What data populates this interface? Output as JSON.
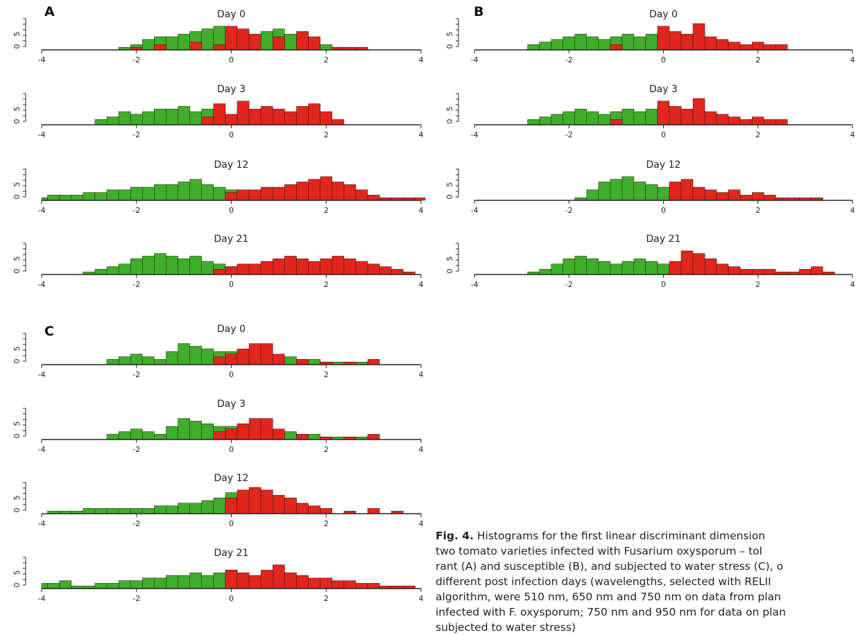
{
  "panels": [
    {
      "letter": "A",
      "days": [
        "Day 0",
        "Day 3",
        "Day 12",
        "Day 21"
      ]
    },
    {
      "letter": "B",
      "days": [
        "Day 0",
        "Day 3",
        "Day 12",
        "Day 21"
      ]
    },
    {
      "letter": "C",
      "days": [
        "Day 0",
        "Day 3",
        "Day 12",
        "Day 21"
      ]
    }
  ],
  "colors": {
    "class_1": "#3fae2a",
    "class_2": "#e0261d",
    "axis": "#222222"
  },
  "x_tick_labels": [
    "-4",
    "-2",
    "0",
    "2",
    "4"
  ],
  "y_tick_labels": [
    "0",
    "5"
  ],
  "caption": {
    "bold_prefix": "Fig. 4.",
    "lines": [
      " Histograms for the first linear discriminant dimension",
      "two tomato varieties infected with Fusarium oxysporum – tol",
      "rant (A) and susceptible (B), and subjected to water stress (C), o",
      "different post infection days (wavelengths, selected with RELII",
      "algorithm, were 510 nm, 650 nm and 750 nm on data from plan",
      "infected with F. oxysporum; 750 nm and 950 nm for data on plan",
      "subjected to water stress)"
    ]
  },
  "chart_data": [
    {
      "type": "bar",
      "panel": "A",
      "day": "Day 0",
      "xlim": [
        -4,
        4
      ],
      "series": [
        {
          "x": [
            -2.25,
            -2.0,
            -1.75,
            -1.5,
            -1.25,
            -1.0,
            -0.75,
            -0.5,
            -0.25,
            0.0,
            0.25,
            0.5,
            0.75,
            1.0,
            1.25,
            1.5,
            1.75,
            2.0,
            2.25,
            2.5,
            2.75
          ],
          "values": [
            1,
            2,
            4,
            5,
            5,
            6,
            7,
            8,
            9,
            8,
            7,
            6,
            7,
            8,
            6,
            4,
            3,
            2,
            1,
            1,
            1
          ]
        },
        {
          "x": [
            -2.0,
            -1.5,
            -0.75,
            -0.25,
            0.0,
            0.25,
            0.5,
            1.0,
            1.5,
            1.75,
            2.25,
            2.5,
            2.75
          ],
          "values": [
            1,
            2,
            3,
            2,
            9,
            8,
            6,
            5,
            7,
            5,
            1,
            1,
            1
          ]
        }
      ]
    },
    {
      "type": "bar",
      "panel": "A",
      "day": "Day 3",
      "xlim": [
        -4,
        4
      ],
      "series": [
        {
          "x": [
            -2.75,
            -2.5,
            -2.25,
            -2.0,
            -1.75,
            -1.5,
            -1.25,
            -1.0,
            -0.75,
            -0.5,
            -0.25,
            0.0,
            0.25,
            0.5,
            0.75,
            1.0,
            1.25,
            1.5,
            1.75,
            2.0
          ],
          "values": [
            2,
            3,
            5,
            4,
            5,
            6,
            6,
            7,
            5,
            6,
            5,
            4,
            6,
            5,
            4,
            4,
            3,
            2,
            2,
            1
          ]
        },
        {
          "x": [
            -0.5,
            -0.25,
            0.0,
            0.25,
            0.5,
            0.75,
            1.0,
            1.25,
            1.5,
            1.75,
            2.0,
            2.25
          ],
          "values": [
            3,
            8,
            4,
            9,
            6,
            7,
            6,
            5,
            7,
            8,
            5,
            2
          ]
        }
      ]
    },
    {
      "type": "bar",
      "panel": "A",
      "day": "Day 12",
      "xlim": [
        -4,
        4
      ],
      "series": [
        {
          "x": [
            -4.0,
            -3.75,
            -3.5,
            -3.25,
            -3.0,
            -2.75,
            -2.5,
            -2.25,
            -2.0,
            -1.75,
            -1.5,
            -1.25,
            -1.0,
            -0.75,
            -0.5,
            -0.25,
            0.0,
            0.25,
            0.5
          ],
          "values": [
            1,
            2,
            2,
            2,
            3,
            3,
            4,
            4,
            5,
            5,
            6,
            6,
            7,
            8,
            6,
            5,
            4,
            4,
            3
          ]
        },
        {
          "x": [
            0.0,
            0.25,
            0.5,
            0.75,
            1.0,
            1.25,
            1.5,
            1.75,
            2.0,
            2.25,
            2.5,
            2.75,
            3.0,
            3.25,
            3.5,
            3.75,
            4.0
          ],
          "values": [
            3,
            4,
            4,
            5,
            5,
            6,
            7,
            8,
            9,
            7,
            6,
            4,
            2,
            1,
            1,
            1,
            1
          ]
        }
      ]
    },
    {
      "type": "bar",
      "panel": "A",
      "day": "Day 21",
      "xlim": [
        -4,
        4
      ],
      "series": [
        {
          "x": [
            -3.0,
            -2.75,
            -2.5,
            -2.25,
            -2.0,
            -1.75,
            -1.5,
            -1.25,
            -1.0,
            -0.75,
            -0.5,
            -0.25,
            0.0,
            0.25
          ],
          "values": [
            1,
            2,
            3,
            4,
            6,
            7,
            8,
            7,
            6,
            7,
            5,
            4,
            3,
            2
          ]
        },
        {
          "x": [
            -0.25,
            0.0,
            0.25,
            0.5,
            0.75,
            1.0,
            1.25,
            1.5,
            1.75,
            2.0,
            2.25,
            2.5,
            2.75,
            3.0,
            3.25,
            3.5,
            3.75
          ],
          "values": [
            2,
            3,
            4,
            4,
            5,
            6,
            7,
            6,
            5,
            6,
            7,
            6,
            5,
            4,
            3,
            2,
            1
          ]
        }
      ]
    },
    {
      "type": "bar",
      "panel": "B",
      "day": "Day 0",
      "xlim": [
        -4,
        4
      ],
      "series": [
        {
          "x": [
            -2.75,
            -2.5,
            -2.25,
            -2.0,
            -1.75,
            -1.5,
            -1.25,
            -1.0,
            -0.75,
            -0.5,
            -0.25,
            0.0,
            0.25,
            0.5,
            0.75,
            1.0
          ],
          "values": [
            2,
            3,
            4,
            5,
            6,
            5,
            4,
            5,
            6,
            5,
            6,
            7,
            6,
            5,
            6,
            4
          ]
        },
        {
          "x": [
            -1.0,
            0.0,
            0.25,
            0.5,
            0.75,
            1.0,
            1.25,
            1.5,
            1.75,
            2.0,
            2.25,
            2.5
          ],
          "values": [
            2,
            9,
            7,
            6,
            10,
            5,
            4,
            3,
            2,
            3,
            2,
            2
          ]
        }
      ]
    },
    {
      "type": "bar",
      "panel": "B",
      "day": "Day 3",
      "xlim": [
        -4,
        4
      ],
      "series": [
        {
          "x": [
            -2.75,
            -2.5,
            -2.25,
            -2.0,
            -1.75,
            -1.5,
            -1.25,
            -1.0,
            -0.75,
            -0.5,
            -0.25,
            0.0,
            0.25,
            0.5,
            0.75,
            1.0
          ],
          "values": [
            2,
            3,
            4,
            5,
            6,
            5,
            4,
            5,
            6,
            5,
            6,
            7,
            6,
            5,
            6,
            4
          ]
        },
        {
          "x": [
            -1.0,
            0.0,
            0.25,
            0.5,
            0.75,
            1.0,
            1.25,
            1.5,
            1.75,
            2.0,
            2.25,
            2.5
          ],
          "values": [
            2,
            9,
            7,
            6,
            10,
            5,
            4,
            3,
            2,
            3,
            2,
            2
          ]
        }
      ]
    },
    {
      "type": "bar",
      "panel": "B",
      "day": "Day 12",
      "xlim": [
        -4,
        4
      ],
      "series": [
        {
          "x": [
            -1.75,
            -1.5,
            -1.25,
            -1.0,
            -0.75,
            -0.5,
            -0.25,
            0.0,
            0.25,
            0.5,
            0.75,
            1.0
          ],
          "values": [
            1,
            4,
            7,
            8,
            9,
            7,
            6,
            5,
            4,
            3,
            2,
            2
          ]
        },
        {
          "x": [
            0.25,
            0.5,
            0.75,
            1.0,
            1.25,
            1.5,
            1.75,
            2.0,
            2.25,
            2.5,
            2.75,
            3.0,
            3.25
          ],
          "values": [
            7,
            8,
            5,
            4,
            3,
            4,
            2,
            3,
            2,
            1,
            1,
            1,
            1
          ]
        }
      ]
    },
    {
      "type": "bar",
      "panel": "B",
      "day": "Day 21",
      "xlim": [
        -4,
        4
      ],
      "series": [
        {
          "x": [
            -2.75,
            -2.5,
            -2.25,
            -2.0,
            -1.75,
            -1.5,
            -1.25,
            -1.0,
            -0.75,
            -0.5,
            -0.25,
            0.0,
            0.25,
            0.5,
            0.75
          ],
          "values": [
            1,
            2,
            4,
            6,
            7,
            6,
            5,
            4,
            5,
            6,
            5,
            4,
            3,
            2,
            2
          ]
        },
        {
          "x": [
            0.25,
            0.5,
            0.75,
            1.0,
            1.25,
            1.5,
            1.75,
            2.0,
            2.25,
            2.5,
            2.75,
            3.0,
            3.25,
            3.5
          ],
          "values": [
            5,
            9,
            8,
            6,
            4,
            3,
            2,
            2,
            2,
            1,
            1,
            2,
            3,
            1
          ]
        }
      ]
    },
    {
      "type": "bar",
      "panel": "C",
      "day": "Day 0",
      "xlim": [
        -4,
        4
      ],
      "series": [
        {
          "x": [
            -2.5,
            -2.25,
            -2.0,
            -1.75,
            -1.5,
            -1.25,
            -1.0,
            -0.75,
            -0.5,
            -0.25,
            0.0,
            0.25,
            0.5,
            0.75,
            1.0,
            1.25,
            1.5,
            1.75,
            2.0,
            2.25,
            2.5,
            2.75
          ],
          "values": [
            2,
            3,
            4,
            3,
            2,
            5,
            8,
            7,
            6,
            5,
            5,
            4,
            5,
            4,
            3,
            3,
            2,
            2,
            1,
            1,
            1,
            1
          ]
        },
        {
          "x": [
            -0.25,
            0.0,
            0.25,
            0.5,
            0.75,
            1.0,
            1.5,
            2.0,
            2.5,
            3.0
          ],
          "values": [
            3,
            4,
            6,
            8,
            8,
            4,
            2,
            1,
            1,
            2
          ]
        }
      ]
    },
    {
      "type": "bar",
      "panel": "C",
      "day": "Day 3",
      "xlim": [
        -4,
        4
      ],
      "series": [
        {
          "x": [
            -2.5,
            -2.25,
            -2.0,
            -1.75,
            -1.5,
            -1.25,
            -1.0,
            -0.75,
            -0.5,
            -0.25,
            0.0,
            0.25,
            0.5,
            0.75,
            1.0,
            1.25,
            1.5,
            1.75,
            2.0,
            2.25,
            2.5,
            2.75
          ],
          "values": [
            2,
            3,
            4,
            3,
            2,
            5,
            8,
            7,
            6,
            5,
            5,
            4,
            5,
            4,
            3,
            3,
            2,
            2,
            1,
            1,
            1,
            1
          ]
        },
        {
          "x": [
            -0.25,
            0.0,
            0.25,
            0.5,
            0.75,
            1.0,
            1.5,
            2.0,
            2.5,
            3.0
          ],
          "values": [
            3,
            4,
            6,
            8,
            8,
            4,
            2,
            1,
            1,
            2
          ]
        }
      ]
    },
    {
      "type": "bar",
      "panel": "C",
      "day": "Day 12",
      "xlim": [
        -4,
        4
      ],
      "series": [
        {
          "x": [
            -3.75,
            -3.5,
            -3.25,
            -3.0,
            -2.75,
            -2.5,
            -2.25,
            -2.0,
            -1.75,
            -1.5,
            -1.25,
            -1.0,
            -0.75,
            -0.5,
            -0.25,
            0.0,
            0.25,
            0.5,
            0.75
          ],
          "values": [
            1,
            1,
            1,
            2,
            2,
            2,
            2,
            2,
            2,
            3,
            3,
            4,
            4,
            5,
            6,
            8,
            7,
            5,
            4
          ]
        },
        {
          "x": [
            0.0,
            0.25,
            0.5,
            0.75,
            1.0,
            1.25,
            1.5,
            1.75,
            2.0,
            2.5,
            3.0,
            3.5
          ],
          "values": [
            6,
            9,
            10,
            9,
            7,
            6,
            4,
            3,
            2,
            1,
            2,
            1
          ]
        }
      ]
    },
    {
      "type": "bar",
      "panel": "C",
      "day": "Day 21",
      "xlim": [
        -4,
        4
      ],
      "series": [
        {
          "x": [
            -4.0,
            -3.75,
            -3.5,
            -3.25,
            -3.0,
            -2.75,
            -2.5,
            -2.25,
            -2.0,
            -1.75,
            -1.5,
            -1.25,
            -1.0,
            -0.75,
            -0.5,
            -0.25,
            0.0
          ],
          "values": [
            2,
            2,
            3,
            1,
            1,
            2,
            2,
            3,
            3,
            4,
            4,
            5,
            5,
            6,
            5,
            6,
            7
          ]
        },
        {
          "x": [
            0.0,
            0.25,
            0.5,
            0.75,
            1.0,
            1.25,
            1.5,
            1.75,
            2.0,
            2.25,
            2.5,
            2.75,
            3.0,
            3.25,
            3.5,
            3.75
          ],
          "values": [
            7,
            6,
            5,
            7,
            9,
            6,
            5,
            4,
            4,
            3,
            3,
            2,
            2,
            1,
            1,
            1
          ]
        }
      ]
    }
  ]
}
